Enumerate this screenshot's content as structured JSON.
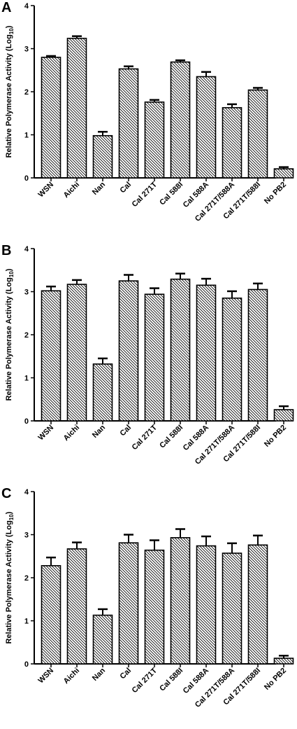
{
  "chart_data": [
    {
      "panel": "A",
      "type": "bar",
      "ylabel_main": "Relative Polymerase Activity (Log",
      "ylabel_sub": "10",
      "ylabel_close": ")",
      "ylim": [
        0,
        4
      ],
      "yticks": [
        "0",
        "1",
        "2",
        "3",
        "4"
      ],
      "categories": [
        "WSN",
        "Aichi",
        "Nan",
        "Cal",
        "Cal 271T",
        "Cal 588I",
        "Cal 588A",
        "Cal 271T/588A",
        "Cal 271T/588I",
        "No PB2"
      ],
      "values": [
        2.8,
        3.24,
        0.98,
        2.53,
        1.76,
        2.69,
        2.35,
        1.63,
        2.04,
        0.21
      ],
      "errors": [
        0.03,
        0.05,
        0.09,
        0.06,
        0.05,
        0.04,
        0.11,
        0.08,
        0.05,
        0.04
      ]
    },
    {
      "panel": "B",
      "type": "bar",
      "ylabel_main": "Relative Polymerase Activity (Log",
      "ylabel_sub": "10",
      "ylabel_close": ")",
      "ylim": [
        0,
        4
      ],
      "yticks": [
        "0",
        "1",
        "2",
        "3",
        "4"
      ],
      "categories": [
        "WSN",
        "Aichi",
        "Nan",
        "Cal",
        "Cal 271T",
        "Cal 588I",
        "Cal 588A",
        "Cal 271T/588A",
        "Cal 271T/588I",
        "No PB2"
      ],
      "values": [
        3.02,
        3.17,
        1.32,
        3.25,
        2.94,
        3.29,
        3.15,
        2.85,
        3.05,
        0.26
      ],
      "errors": [
        0.1,
        0.1,
        0.13,
        0.14,
        0.14,
        0.13,
        0.15,
        0.16,
        0.14,
        0.08
      ]
    },
    {
      "panel": "C",
      "type": "bar",
      "ylabel_main": "Relative Polymerase Activity (Log",
      "ylabel_sub": "10",
      "ylabel_close": ")",
      "ylim": [
        0,
        4
      ],
      "yticks": [
        "0",
        "1",
        "2",
        "3",
        "4"
      ],
      "categories": [
        "WSN",
        "Aichi",
        "Nan",
        "Cal",
        "Cal 271T",
        "Cal 588I",
        "Cal 588A",
        "Cal 271T/588A",
        "Cal 271T/588I",
        "No PB2"
      ],
      "values": [
        2.28,
        2.67,
        1.13,
        2.81,
        2.64,
        2.93,
        2.74,
        2.57,
        2.76,
        0.13
      ],
      "errors": [
        0.19,
        0.15,
        0.14,
        0.19,
        0.23,
        0.2,
        0.22,
        0.23,
        0.22,
        0.06
      ]
    }
  ]
}
